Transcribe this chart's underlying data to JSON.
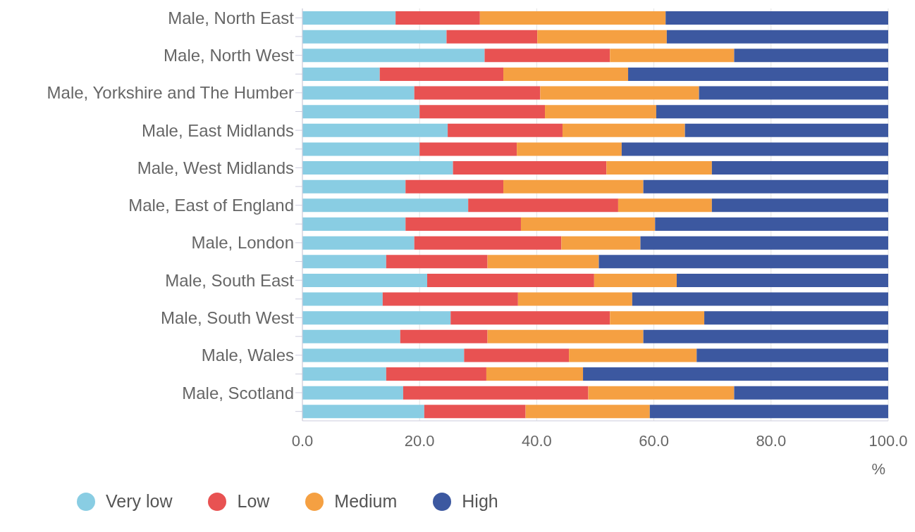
{
  "chart_data": {
    "type": "bar",
    "orientation": "horizontal",
    "stacked": true,
    "xlabel": "%",
    "categories": [
      "Male, North East",
      null,
      "Male, North West",
      null,
      "Male, Yorkshire and The Humber",
      null,
      "Male, East Midlands",
      null,
      "Male, West Midlands",
      null,
      "Male, East of England",
      null,
      "Male, London",
      null,
      "Male, South East",
      null,
      "Male, South West",
      null,
      "Male, Wales",
      null,
      "Male, Scotland",
      null
    ],
    "series": [
      {
        "name": "Very low",
        "color": "#89cde3",
        "values": [
          15.9,
          24.6,
          31.1,
          13.2,
          19.1,
          20.0,
          24.8,
          20.0,
          25.7,
          17.6,
          28.3,
          17.6,
          19.1,
          14.3,
          21.3,
          13.7,
          25.3,
          16.7,
          27.6,
          14.3,
          17.2,
          20.8
        ]
      },
      {
        "name": "Low",
        "color": "#e85252",
        "values": [
          14.4,
          15.5,
          21.4,
          21.1,
          21.5,
          21.4,
          19.6,
          16.6,
          26.2,
          16.7,
          25.6,
          19.7,
          25.1,
          17.3,
          28.5,
          23.1,
          27.2,
          14.9,
          17.9,
          17.1,
          31.6,
          17.3
        ]
      },
      {
        "name": "Medium",
        "color": "#f5a042",
        "values": [
          31.7,
          22.1,
          21.2,
          21.3,
          27.1,
          19.0,
          20.9,
          17.9,
          18.0,
          23.9,
          16.0,
          22.9,
          13.5,
          19.0,
          14.1,
          19.5,
          16.1,
          26.6,
          21.8,
          16.5,
          24.9,
          21.2
        ]
      },
      {
        "name": "High",
        "color": "#3c58a0",
        "values": [
          38.0,
          37.8,
          26.3,
          44.4,
          32.3,
          39.6,
          34.7,
          45.5,
          30.1,
          41.8,
          30.1,
          39.8,
          42.3,
          49.4,
          36.1,
          43.7,
          31.4,
          41.8,
          32.7,
          52.1,
          26.3,
          40.7
        ]
      }
    ],
    "xlim": [
      0,
      100
    ],
    "xticks": [
      {
        "value": 0,
        "label": "0.0"
      },
      {
        "value": 20,
        "label": "20.0"
      },
      {
        "value": 40,
        "label": "40.0"
      },
      {
        "value": 60,
        "label": "60.0"
      },
      {
        "value": 80,
        "label": "80.0"
      },
      {
        "value": 100,
        "label": "100.0"
      }
    ],
    "grid": "x",
    "legend": "bottom left"
  }
}
